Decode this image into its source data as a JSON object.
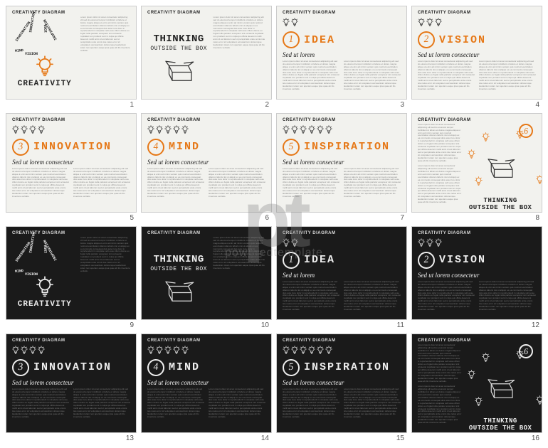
{
  "header_label": "CREATIVITY DIAGRAM",
  "watermark": {
    "logo": "pt",
    "text": "poweredtemplate"
  },
  "colors": {
    "orange": "#e67817",
    "orange_light": "#f0a450",
    "light_bg": "#f2f2ee",
    "dark_bg": "#1a1a1a",
    "light_text": "#222222",
    "dark_text": "#eeeeee",
    "filler_light": "#888888",
    "filler_dark": "#777777"
  },
  "creativity": {
    "title": "CREATIVITY",
    "rays": [
      "MIND",
      "IMAGINATION",
      "INNOVATION",
      "IDEA",
      "INSPIRATION",
      "VISION"
    ]
  },
  "thinking": {
    "line1": "THINKING",
    "line2": "OUTSIDE THE BOX"
  },
  "numbered": [
    {
      "n": "1",
      "word": "IDEA",
      "sub": "Sed ut lorem"
    },
    {
      "n": "2",
      "word": "VISION",
      "sub": "Sed ut lorem consecteur"
    },
    {
      "n": "3",
      "word": "INNOVATION",
      "sub": "Sed ut lorem consecteur"
    },
    {
      "n": "4",
      "word": "MIND",
      "sub": "Sed ut lorem consecteur"
    },
    {
      "n": "5",
      "word": "INSPIRATION",
      "sub": "Sed ut lorem consecteur"
    }
  ],
  "slide8": {
    "num": "6",
    "line1": "THINKING",
    "line2": "OUTSIDE THE BOX"
  },
  "filler": "Lorem ipsum dolor sit amet consectetur adipiscing elit sed do eiusmod tempor incididunt ut labore et dolore magna aliqua ut enim ad minim veniam quis nostrud exercitation ullamco laboris nisi ut aliquip ex ea commodo consequat duis aute irure dolor in reprehenderit in voluptate velit esse cillum dolore eu fugiat nulla pariatur excepteur sint occaecat cupidatat non proident sunt in culpa qui officia deserunt mollit anim id est laborum sed ut perspiciatis unde omnis iste natus error sit voluptatem accusantium doloremque laudantium totam rem aperiam eaque ipsa quae ab illo inventore veritatis.",
  "slide_numbers": [
    "1",
    "2",
    "3",
    "4",
    "5",
    "6",
    "7",
    "8",
    "9",
    "10",
    "11",
    "12",
    "13",
    "14",
    "15",
    "16"
  ],
  "themes": {
    "light": {
      "bg": "#f2f2ee",
      "fg": "#222222",
      "accent": "#e67817",
      "stroke": "#333333"
    },
    "dark": {
      "bg": "#1a1a1a",
      "fg": "#eeeeee",
      "accent": "#eeeeee",
      "stroke": "#dddddd"
    }
  }
}
